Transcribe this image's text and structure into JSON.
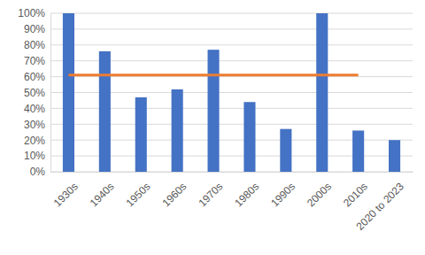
{
  "chart_data": {
    "type": "bar",
    "categories": [
      "1930s",
      "1940s",
      "1950s",
      "1960s",
      "1970s",
      "1980s",
      "1990s",
      "2000s",
      "2010s",
      "2020 to 2023"
    ],
    "series": [
      {
        "type": "bar",
        "color": "#4472c4",
        "values": [
          100,
          76,
          47,
          52,
          77,
          44,
          27,
          100,
          26,
          20
        ]
      },
      {
        "type": "line",
        "color": "#ed7d31",
        "values": [
          61,
          61,
          61,
          61,
          61,
          61,
          61,
          61,
          61,
          null
        ]
      }
    ],
    "ylim": [
      0,
      100
    ],
    "yticks": [
      {
        "value": 0,
        "label": "0%"
      },
      {
        "value": 10,
        "label": "10%"
      },
      {
        "value": 20,
        "label": "20%"
      },
      {
        "value": 30,
        "label": "30%"
      },
      {
        "value": 40,
        "label": "40%"
      },
      {
        "value": 50,
        "label": "50%"
      },
      {
        "value": 60,
        "label": "60%"
      },
      {
        "value": 70,
        "label": "70%"
      },
      {
        "value": 80,
        "label": "80%"
      },
      {
        "value": 90,
        "label": "90%"
      },
      {
        "value": 100,
        "label": "100%"
      }
    ],
    "grid": true
  }
}
